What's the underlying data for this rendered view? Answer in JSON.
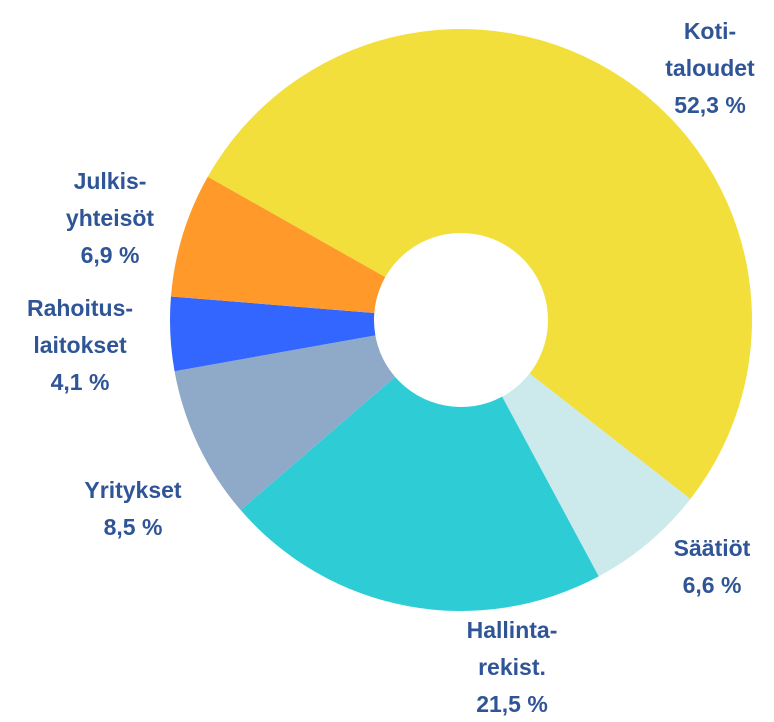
{
  "chart_data": {
    "type": "donut",
    "categories": [
      [
        "Koti-",
        "taloudet"
      ],
      [
        "Säätiöt"
      ],
      [
        "Hallinta-",
        "rekist."
      ],
      [
        "Yritykset"
      ],
      [
        "Rahoitus-",
        "laitokset"
      ],
      [
        "Julkis-",
        "yhteisöt"
      ]
    ],
    "values": [
      52.3,
      6.6,
      21.5,
      8.5,
      4.1,
      6.9
    ],
    "value_labels": [
      "52,3 %",
      "6,6 %",
      "21,5 %",
      "8,5 %",
      "4,1 %",
      "6,9 %"
    ],
    "colors": [
      "#f2df3c",
      "#cce9ec",
      "#2ecdd6",
      "#8faac8",
      "#3366ff",
      "#ff9a2a"
    ]
  }
}
